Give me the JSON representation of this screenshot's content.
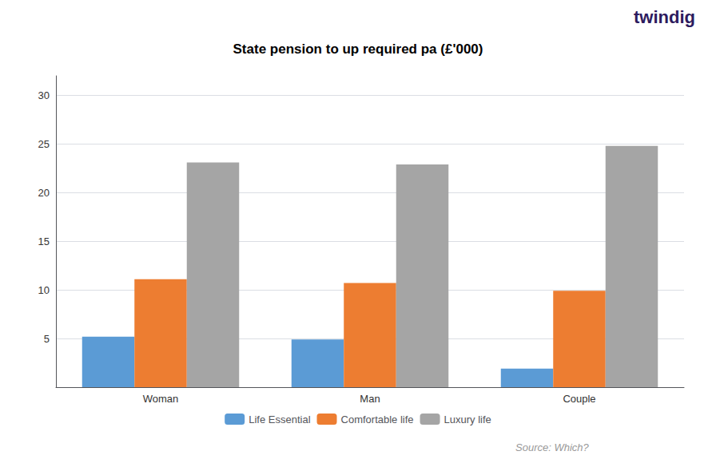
{
  "chart_data": {
    "type": "bar",
    "title": "State pension to up required pa (£'000)",
    "categories": [
      "Woman",
      "Man",
      "Couple"
    ],
    "series": [
      {
        "name": "Life Essential",
        "color": "#5B9BD5",
        "values": [
          5.2,
          4.9,
          1.9
        ]
      },
      {
        "name": "Comfortable life",
        "color": "#ED7D31",
        "values": [
          11.1,
          10.7,
          9.9
        ]
      },
      {
        "name": "Luxury life",
        "color": "#A5A5A5",
        "values": [
          23.1,
          22.9,
          24.8
        ]
      }
    ],
    "ylim": [
      0,
      32
    ],
    "yticks": [
      {
        "value": 0,
        "label": ""
      },
      5,
      10,
      15,
      20,
      25,
      30
    ],
    "grid": true,
    "legend": "bottom",
    "annotations": [
      "twindig",
      "Source: Which?"
    ]
  }
}
